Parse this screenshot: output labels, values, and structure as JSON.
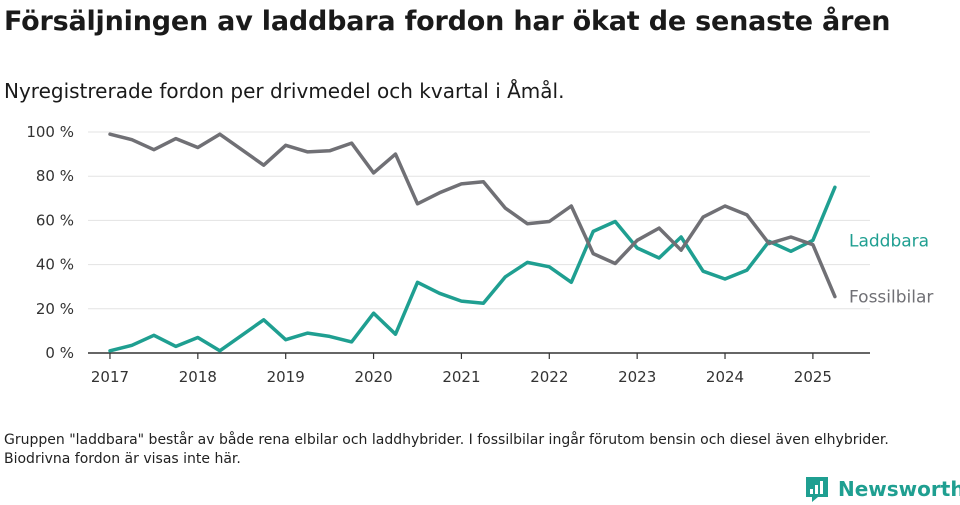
{
  "title": "Försäljningen av laddbara fordon har ökat de senaste åren",
  "subtitle": "Nyregistrerade fordon per drivmedel och kvartal i Åmål.",
  "note": "Gruppen \"laddbara\" består av både rena elbilar och laddhybrider. I fossilbilar ingår förutom bensin och diesel även elhybrider. Biodrivna fordon är visas inte här.",
  "brand": {
    "name": "Newsworthy",
    "icon": "newsworthy-logo-icon",
    "color": "#1f9f91"
  },
  "chart_data": {
    "type": "line",
    "title": "Försäljningen av laddbara fordon har ökat de senaste åren",
    "xlabel": "",
    "ylabel": "",
    "ylim": [
      0,
      100
    ],
    "y_ticks": [
      0,
      20,
      40,
      60,
      80,
      100
    ],
    "y_tick_labels": [
      "0 %",
      "20 %",
      "40 %",
      "60 %",
      "80 %",
      "100 %"
    ],
    "x_tick_labels": [
      "2017",
      "2018",
      "2019",
      "2020",
      "2021",
      "2022",
      "2023",
      "2024",
      "2025"
    ],
    "x_ticks": [
      2017,
      2018,
      2019,
      2020,
      2021,
      2022,
      2023,
      2024,
      2025
    ],
    "xlim": [
      2016.75,
      2025.65
    ],
    "grid": true,
    "legend": "inline-right",
    "x": [
      2017,
      2017.25,
      2017.5,
      2017.75,
      2018,
      2018.25,
      2018.5,
      2018.75,
      2019,
      2019.25,
      2019.5,
      2019.75,
      2020,
      2020.25,
      2020.5,
      2020.75,
      2021,
      2021.25,
      2021.5,
      2021.75,
      2022,
      2022.25,
      2022.5,
      2022.75,
      2023,
      2023.25,
      2023.5,
      2023.75,
      2024,
      2024.25,
      2024.5,
      2024.75,
      2025,
      2025.25
    ],
    "series": [
      {
        "name": "Laddbara",
        "color": "#1f9f91",
        "values": [
          1,
          3.5,
          8,
          3,
          7,
          1,
          8,
          15,
          6,
          9,
          7.5,
          5,
          18,
          8.5,
          32,
          27,
          23.5,
          22.5,
          34.5,
          41,
          39,
          32,
          55,
          59.5,
          47.5,
          43,
          52.5,
          37,
          33.5,
          37.5,
          50.5,
          46,
          51,
          75
        ]
      },
      {
        "name": "Fossilbilar",
        "color": "#707075",
        "values": [
          99,
          96.5,
          92,
          97,
          93,
          99,
          92,
          85,
          94,
          91,
          91.5,
          95,
          81.5,
          90,
          67.5,
          72.5,
          76.5,
          77.5,
          65.5,
          58.5,
          59.5,
          66.5,
          45,
          40.5,
          51,
          56.5,
          46.5,
          61.5,
          66.5,
          62.5,
          49.5,
          52.5,
          49,
          25.5
        ]
      }
    ]
  }
}
